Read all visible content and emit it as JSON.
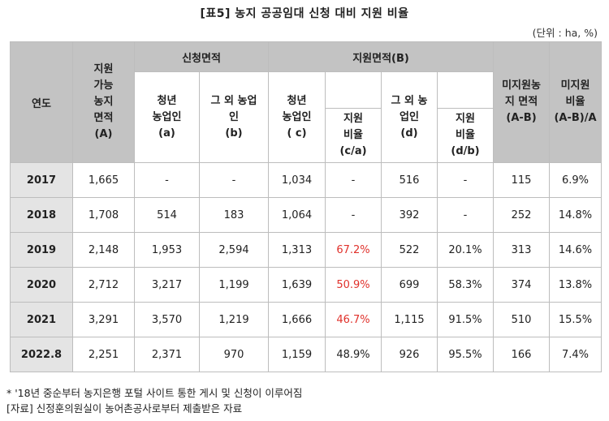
{
  "title": "[표5] 농지 공공임대 신청 대비 지원 비율",
  "unit": "(단위 : ha, %)",
  "headers": {
    "year": "연도",
    "available": [
      "지원",
      "가능",
      "농지",
      "면적",
      "(A)"
    ],
    "applied_group": "신청면적",
    "applied_young": [
      "청년",
      "농업인",
      "(a)"
    ],
    "applied_other": [
      "그 외 농업",
      "인",
      "(b)"
    ],
    "support_group": "지원면적(B)",
    "support_young": [
      "청년",
      "농업인",
      "( c)"
    ],
    "support_ratio_ca": [
      "지원",
      "비율",
      "(c/a)"
    ],
    "support_other": [
      "그 외 농",
      "업인",
      "(d)"
    ],
    "support_ratio_db": [
      "지원",
      "비율",
      "(d/b)"
    ],
    "unsupported_area": [
      "미지원농",
      "지 면적",
      "(A-B)"
    ],
    "unsupported_ratio": [
      "미지원",
      "비율",
      "(A-B)/A"
    ]
  },
  "rows": [
    {
      "year": "2017",
      "A": "1,665",
      "a": "-",
      "b": "-",
      "c": "1,034",
      "ca": "-",
      "d": "516",
      "db": "-",
      "AB": "115",
      "ratio": "6.9%"
    },
    {
      "year": "2018",
      "A": "1,708",
      "a": "514",
      "b": "183",
      "c": "1,064",
      "ca": "-",
      "d": "392",
      "db": "-",
      "AB": "252",
      "ratio": "14.8%"
    },
    {
      "year": "2019",
      "A": "2,148",
      "a": "1,953",
      "b": "2,594",
      "c": "1,313",
      "ca": "67.2%",
      "d": "522",
      "db": "20.1%",
      "AB": "313",
      "ratio": "14.6%"
    },
    {
      "year": "2020",
      "A": "2,712",
      "a": "3,217",
      "b": "1,199",
      "c": "1,639",
      "ca": "50.9%",
      "d": "699",
      "db": "58.3%",
      "AB": "374",
      "ratio": "13.8%"
    },
    {
      "year": "2021",
      "A": "3,291",
      "a": "3,570",
      "b": "1,219",
      "c": "1,666",
      "ca": "46.7%",
      "d": "1,115",
      "db": "91.5%",
      "AB": "510",
      "ratio": "15.5%"
    },
    {
      "year": "2022.8",
      "A": "2,251",
      "a": "2,371",
      "b": "970",
      "c": "1,159",
      "ca": "48.9%",
      "d": "926",
      "db": "95.5%",
      "AB": "166",
      "ratio": "7.4%"
    }
  ],
  "highlight_color": "#e0312b",
  "notes": [
    "* '18년 중순부터 농지은행 포털 사이트 통한 게시 및 신청이 이루어짐",
    "[자료] 신정훈의원실이 농어촌공사로부터 제출받은 자료"
  ]
}
